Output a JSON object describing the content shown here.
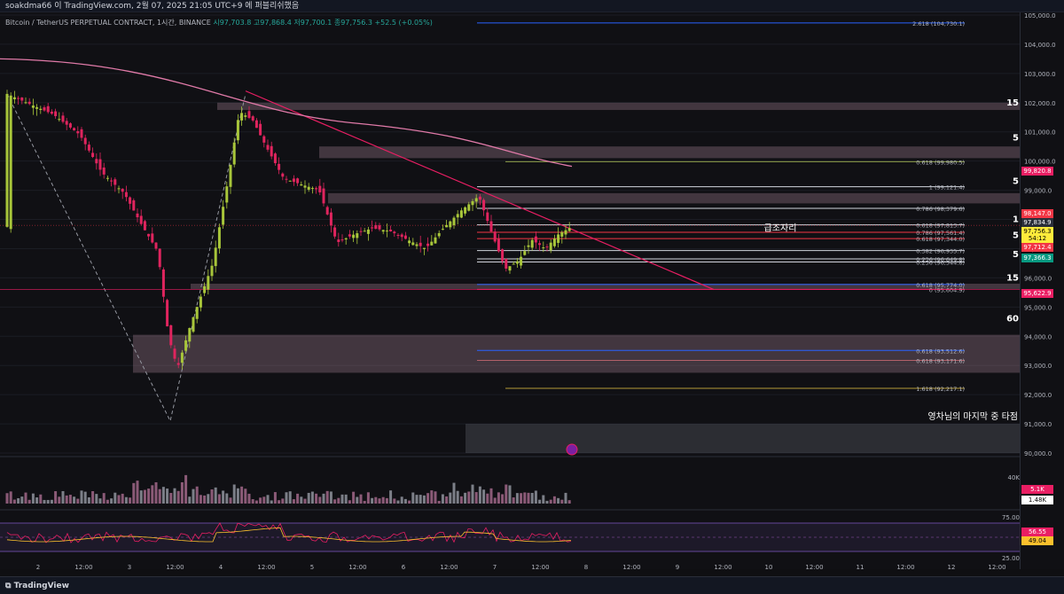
{
  "header": {
    "text": "soakdma66 이 TradingView.com, 2월 07, 2025 21:05 UTC+9 에 퍼블리쉬했음"
  },
  "symbol": {
    "name": "Bitcoin / TetherUS PERPETUAL CONTRACT, 1시간, BINANCE",
    "ohlc": "시97,703.8  고97,868.4  저97,700.1  종97,756.3  +52.5 (+0.05%)"
  },
  "price_axis": {
    "ticks": [
      "105,000.0",
      "104,000.0",
      "103,000.0",
      "102,000.0",
      "101,000.0",
      "100,000.0",
      "99,000.0",
      "98,000.0",
      "97,000.0",
      "96,000.0",
      "95,000.0",
      "94,000.0",
      "93,000.0",
      "92,000.0",
      "91,000.0",
      "90,000.0"
    ]
  },
  "price_labels": [
    {
      "text": "99,820.8",
      "color": "#e91e63"
    },
    {
      "text": "98,147.0",
      "color": "#f23645"
    },
    {
      "text": "97,834.9",
      "color": "#2a2e39"
    },
    {
      "text": "97,756.3",
      "color": "#ffeb3b"
    },
    {
      "text": "54:12",
      "color": "#ffeb3b"
    },
    {
      "text": "97,712.4",
      "color": "#f23645"
    },
    {
      "text": "97,366.3",
      "color": "#089981"
    },
    {
      "text": "95,622.9",
      "color": "#e91e63"
    }
  ],
  "timeframe_labels": [
    "15",
    "5",
    "5",
    "1",
    "5",
    "5",
    "15",
    "60"
  ],
  "fib_labels": [
    "2.618 (104,730.1)",
    "0.618 (99,980.5)",
    "1 (99,121.4)",
    "0.786 (98,379.6)",
    "0.618 (97,813.7)",
    "0.786 (97,561.4)",
    "0.618 (97,344.0)",
    "0.382 (96,935.7)",
    "0.236 (96,649.8)",
    "0.236 (96,544.8)",
    "0.618 (95,774.0)",
    "0 (95,604.9)",
    "0.618 (93,512.6)",
    "0.618 (93,171.6)",
    "1.618 (92,217.1)"
  ],
  "annotations": {
    "zone_label": "급조자리",
    "target_label": "영차님의 마지막 중 타점"
  },
  "volume": {
    "scale": "40K",
    "label1": "5.1K",
    "label2": "1.48K"
  },
  "rsi": {
    "ticks": [
      "75.00",
      "25.00"
    ],
    "value1": "56.55",
    "value2": "49.04"
  },
  "time_axis": [
    "2",
    "12:00",
    "3",
    "12:00",
    "4",
    "12:00",
    "5",
    "12:00",
    "6",
    "12:00",
    "7",
    "12:00",
    "8",
    "12:00",
    "9",
    "12:00",
    "10",
    "12:00",
    "11",
    "12:00",
    "12",
    "12:00"
  ],
  "footer": {
    "brand": "TradingView"
  }
}
